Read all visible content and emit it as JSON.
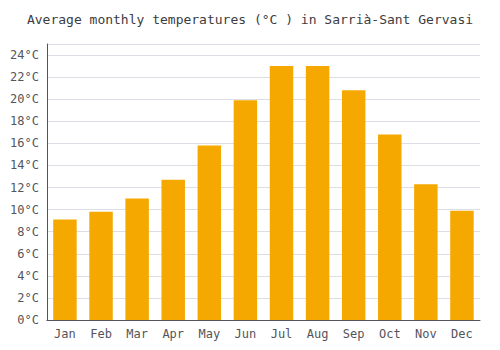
{
  "chart_data": {
    "type": "bar",
    "title": "Average monthly temperatures (°C ) in Sarrià-Sant Gervasi",
    "categories": [
      "Jan",
      "Feb",
      "Mar",
      "Apr",
      "May",
      "Jun",
      "Jul",
      "Aug",
      "Sep",
      "Oct",
      "Nov",
      "Dec"
    ],
    "values": [
      9.1,
      9.8,
      11.0,
      12.7,
      15.8,
      19.9,
      23.0,
      23.0,
      20.8,
      16.8,
      12.3,
      9.9
    ],
    "color": "#F5A800",
    "ylim": [
      0,
      25
    ],
    "yticks": [
      {
        "value": 0,
        "label": "0°C"
      },
      {
        "value": 2,
        "label": "2°C"
      },
      {
        "value": 4,
        "label": "4°C"
      },
      {
        "value": 6,
        "label": "6°C"
      },
      {
        "value": 8,
        "label": "8°C"
      },
      {
        "value": 10,
        "label": "10°C"
      },
      {
        "value": 12,
        "label": "12°C"
      },
      {
        "value": 14,
        "label": "14°C"
      },
      {
        "value": 16,
        "label": "16°C"
      },
      {
        "value": 18,
        "label": "18°C"
      },
      {
        "value": 20,
        "label": "20°C"
      },
      {
        "value": 22,
        "label": "22°C"
      },
      {
        "value": 24,
        "label": "24°C"
      }
    ],
    "grid": true
  }
}
